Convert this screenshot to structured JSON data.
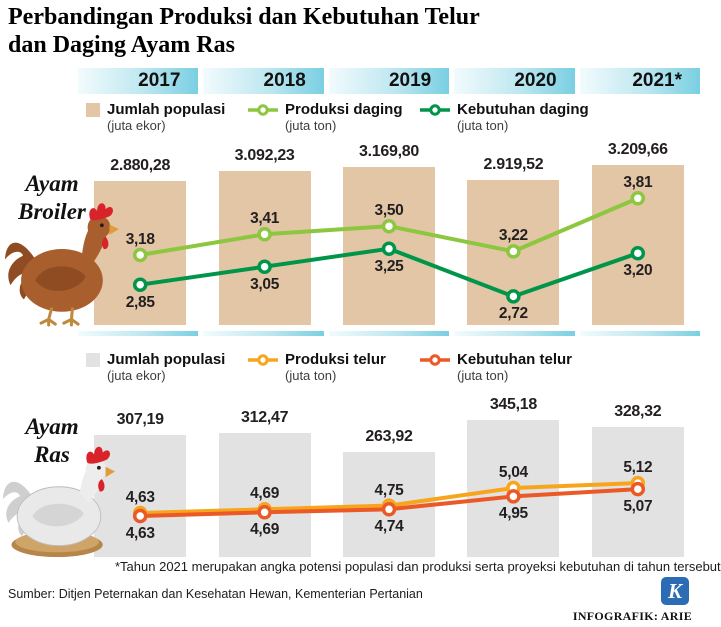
{
  "title": {
    "line1": "Perbandingan Produksi dan Kebutuhan Telur",
    "line2": "dan Daging Ayam Ras"
  },
  "years": [
    "2017",
    "2018",
    "2019",
    "2020",
    "2021*"
  ],
  "rows": [
    {
      "label_line1": "Ayam",
      "label_line2": "Broiler"
    },
    {
      "label_line1": "Ayam",
      "label_line2": "Ras"
    }
  ],
  "chart_data": [
    {
      "type": "bar+line",
      "group": "Ayam Broiler",
      "legend_position": "top",
      "categories": [
        "2017",
        "2018",
        "2019",
        "2020",
        "2021*"
      ],
      "bars": {
        "name": "Jumlah populasi",
        "unit": "(juta ekor)",
        "color": "#e2c6a5",
        "values": [
          2880.28,
          3092.23,
          3169.8,
          2919.52,
          3209.66
        ],
        "labels": [
          "2.880,28",
          "3.092,23",
          "3.169,80",
          "2.919,52",
          "3.209,66"
        ]
      },
      "series": [
        {
          "name": "Produksi daging",
          "unit": "(juta ton)",
          "color": "#8dc63f",
          "values": [
            3.18,
            3.41,
            3.5,
            3.22,
            3.81
          ],
          "labels": [
            "3,18",
            "3,41",
            "3,50",
            "3,22",
            "3,81"
          ]
        },
        {
          "name": "Kebutuhan daging",
          "unit": "(juta ton)",
          "color": "#009549",
          "values": [
            2.85,
            3.05,
            3.25,
            2.72,
            3.2
          ],
          "labels": [
            "2,85",
            "3,05",
            "3,25",
            "2,72",
            "3,20"
          ]
        }
      ]
    },
    {
      "type": "bar+line",
      "group": "Ayam Ras",
      "legend_position": "top",
      "categories": [
        "2017",
        "2018",
        "2019",
        "2020",
        "2021*"
      ],
      "bars": {
        "name": "Jumlah populasi",
        "unit": "(juta ekor)",
        "color": "#e2e2e2",
        "values": [
          307.19,
          312.47,
          263.92,
          345.18,
          328.32
        ],
        "labels": [
          "307,19",
          "312,47",
          "263,92",
          "345,18",
          "328,32"
        ]
      },
      "series": [
        {
          "name": "Produksi telur",
          "unit": "(juta ton)",
          "color": "#f8a51e",
          "values": [
            4.63,
            4.69,
            4.75,
            5.04,
            5.12
          ],
          "labels": [
            "4,63",
            "4,69",
            "4,75",
            "5,04",
            "5,12"
          ]
        },
        {
          "name": "Kebutuhan telur",
          "unit": "(juta ton)",
          "color": "#eb5a26",
          "values": [
            4.63,
            4.69,
            4.74,
            4.95,
            5.07
          ],
          "labels": [
            "4,63",
            "4,69",
            "4,74",
            "4,95",
            "5,07"
          ]
        }
      ]
    }
  ],
  "footnote": "*Tahun 2021 merupakan angka potensi populasi dan produksi serta proyeksi kebutuhan di tahun tersebut",
  "source": "Sumber: Ditjen Peternakan dan Kesehatan Hewan, Kementerian Pertanian",
  "credit": "INFOGRAFIK: ARIE",
  "logo_letter": "K"
}
